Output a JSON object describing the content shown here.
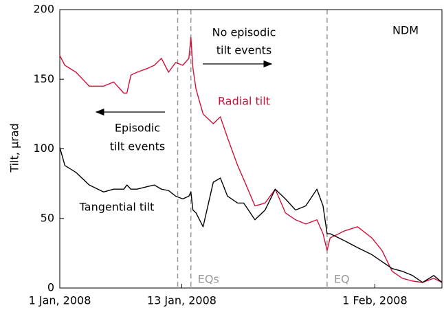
{
  "chart_data": {
    "type": "line",
    "y_label": "Tilt, µrad",
    "x": [
      0,
      0.5,
      1.6,
      2.9,
      4.3,
      5.3,
      6.3,
      6.6,
      7.0,
      7.6,
      8.7,
      9.3,
      10.0,
      10.7,
      11.4,
      12.1,
      12.7,
      12.9,
      13.1,
      13.4,
      14.1,
      15.1,
      15.8,
      16.5,
      17.5,
      18.1,
      19.2,
      20.2,
      21.2,
      22.2,
      23.2,
      24.2,
      25.3,
      25.9,
      26.3,
      26.6,
      28.0,
      29.3,
      30.7,
      31.7,
      32.7,
      33.7,
      34.7,
      35.7,
      36.8,
      37.6
    ],
    "series": [
      {
        "name": "Radial tilt",
        "color": "#d0103a",
        "values": [
          167,
          160,
          155,
          145,
          145,
          148,
          140,
          140,
          153,
          155,
          158,
          160,
          165,
          155,
          162,
          160,
          165,
          180,
          158,
          143,
          125,
          118,
          123,
          108,
          88,
          78,
          59,
          61,
          71,
          54,
          49,
          46,
          49,
          39,
          27,
          36,
          41,
          44,
          36,
          27,
          12,
          7,
          5,
          4,
          7,
          4
        ]
      },
      {
        "name": "Tangential tilt",
        "color": "#000000",
        "values": [
          101,
          88,
          83,
          74,
          69,
          71,
          71,
          74,
          71,
          71,
          73,
          74,
          71,
          70,
          66,
          64,
          66,
          69,
          56,
          54,
          44,
          76,
          79,
          66,
          61,
          61,
          49,
          56,
          71,
          64,
          56,
          59,
          71,
          59,
          39,
          39,
          34,
          29,
          24,
          19,
          14,
          12,
          9,
          4,
          9,
          4
        ]
      }
    ],
    "xlim": [
      0,
      37.6
    ],
    "xticks": [
      {
        "value": 0,
        "label": "1 Jan, 2008"
      },
      {
        "value": 12,
        "label": "13 Jan, 2008"
      },
      {
        "value": 31,
        "label": "1 Feb, 2008"
      }
    ],
    "ylim": [
      0,
      200
    ],
    "yticks": [
      0,
      50,
      100,
      150,
      200
    ],
    "event_lines": [
      11.6,
      12.9,
      26.3
    ],
    "event_labels": [
      "EQs",
      "EQ"
    ],
    "annotations": [
      "NDM",
      "No episodic",
      "tilt events",
      "Episodic",
      "tilt events"
    ],
    "grid": false
  }
}
